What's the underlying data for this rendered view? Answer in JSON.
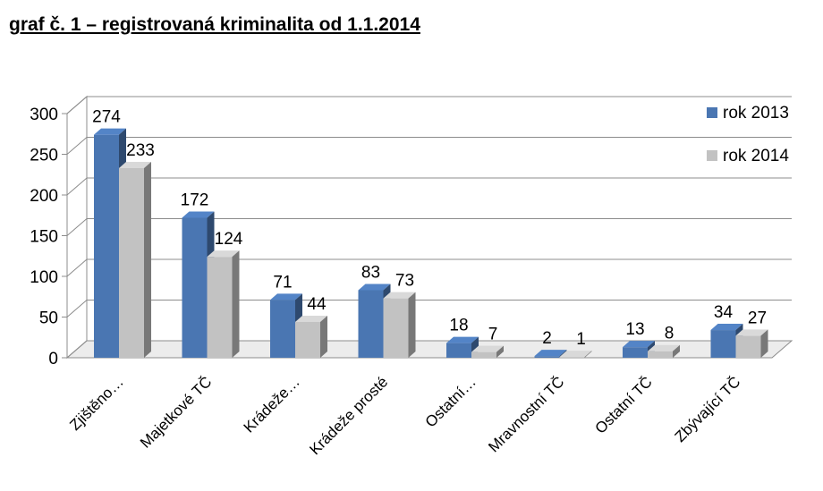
{
  "chart_data": {
    "type": "bar",
    "title": "graf č. 1 – registrovaná kriminalita od 1.1.2014",
    "xlabel": "",
    "ylabel": "",
    "ylim": [
      0,
      300
    ],
    "yticks": [
      0,
      50,
      100,
      150,
      200,
      250,
      300
    ],
    "categories": [
      "Zjištěno…",
      "Majetkové TČ",
      "Krádeže…",
      "Krádeže prosté",
      "Ostatní…",
      "Mravnostní TČ",
      "Ostatní TČ",
      "Zbývající TČ"
    ],
    "series": [
      {
        "name": "rok 2013",
        "values": [
          274,
          172,
          71,
          83,
          18,
          2,
          13,
          34
        ],
        "color": "#4a76b2"
      },
      {
        "name": "rok 2014",
        "values": [
          233,
          124,
          44,
          73,
          7,
          1,
          8,
          27
        ],
        "color": "#c2c2c2"
      }
    ],
    "grid": true,
    "legend": "top-right",
    "style": "3d-bar"
  }
}
